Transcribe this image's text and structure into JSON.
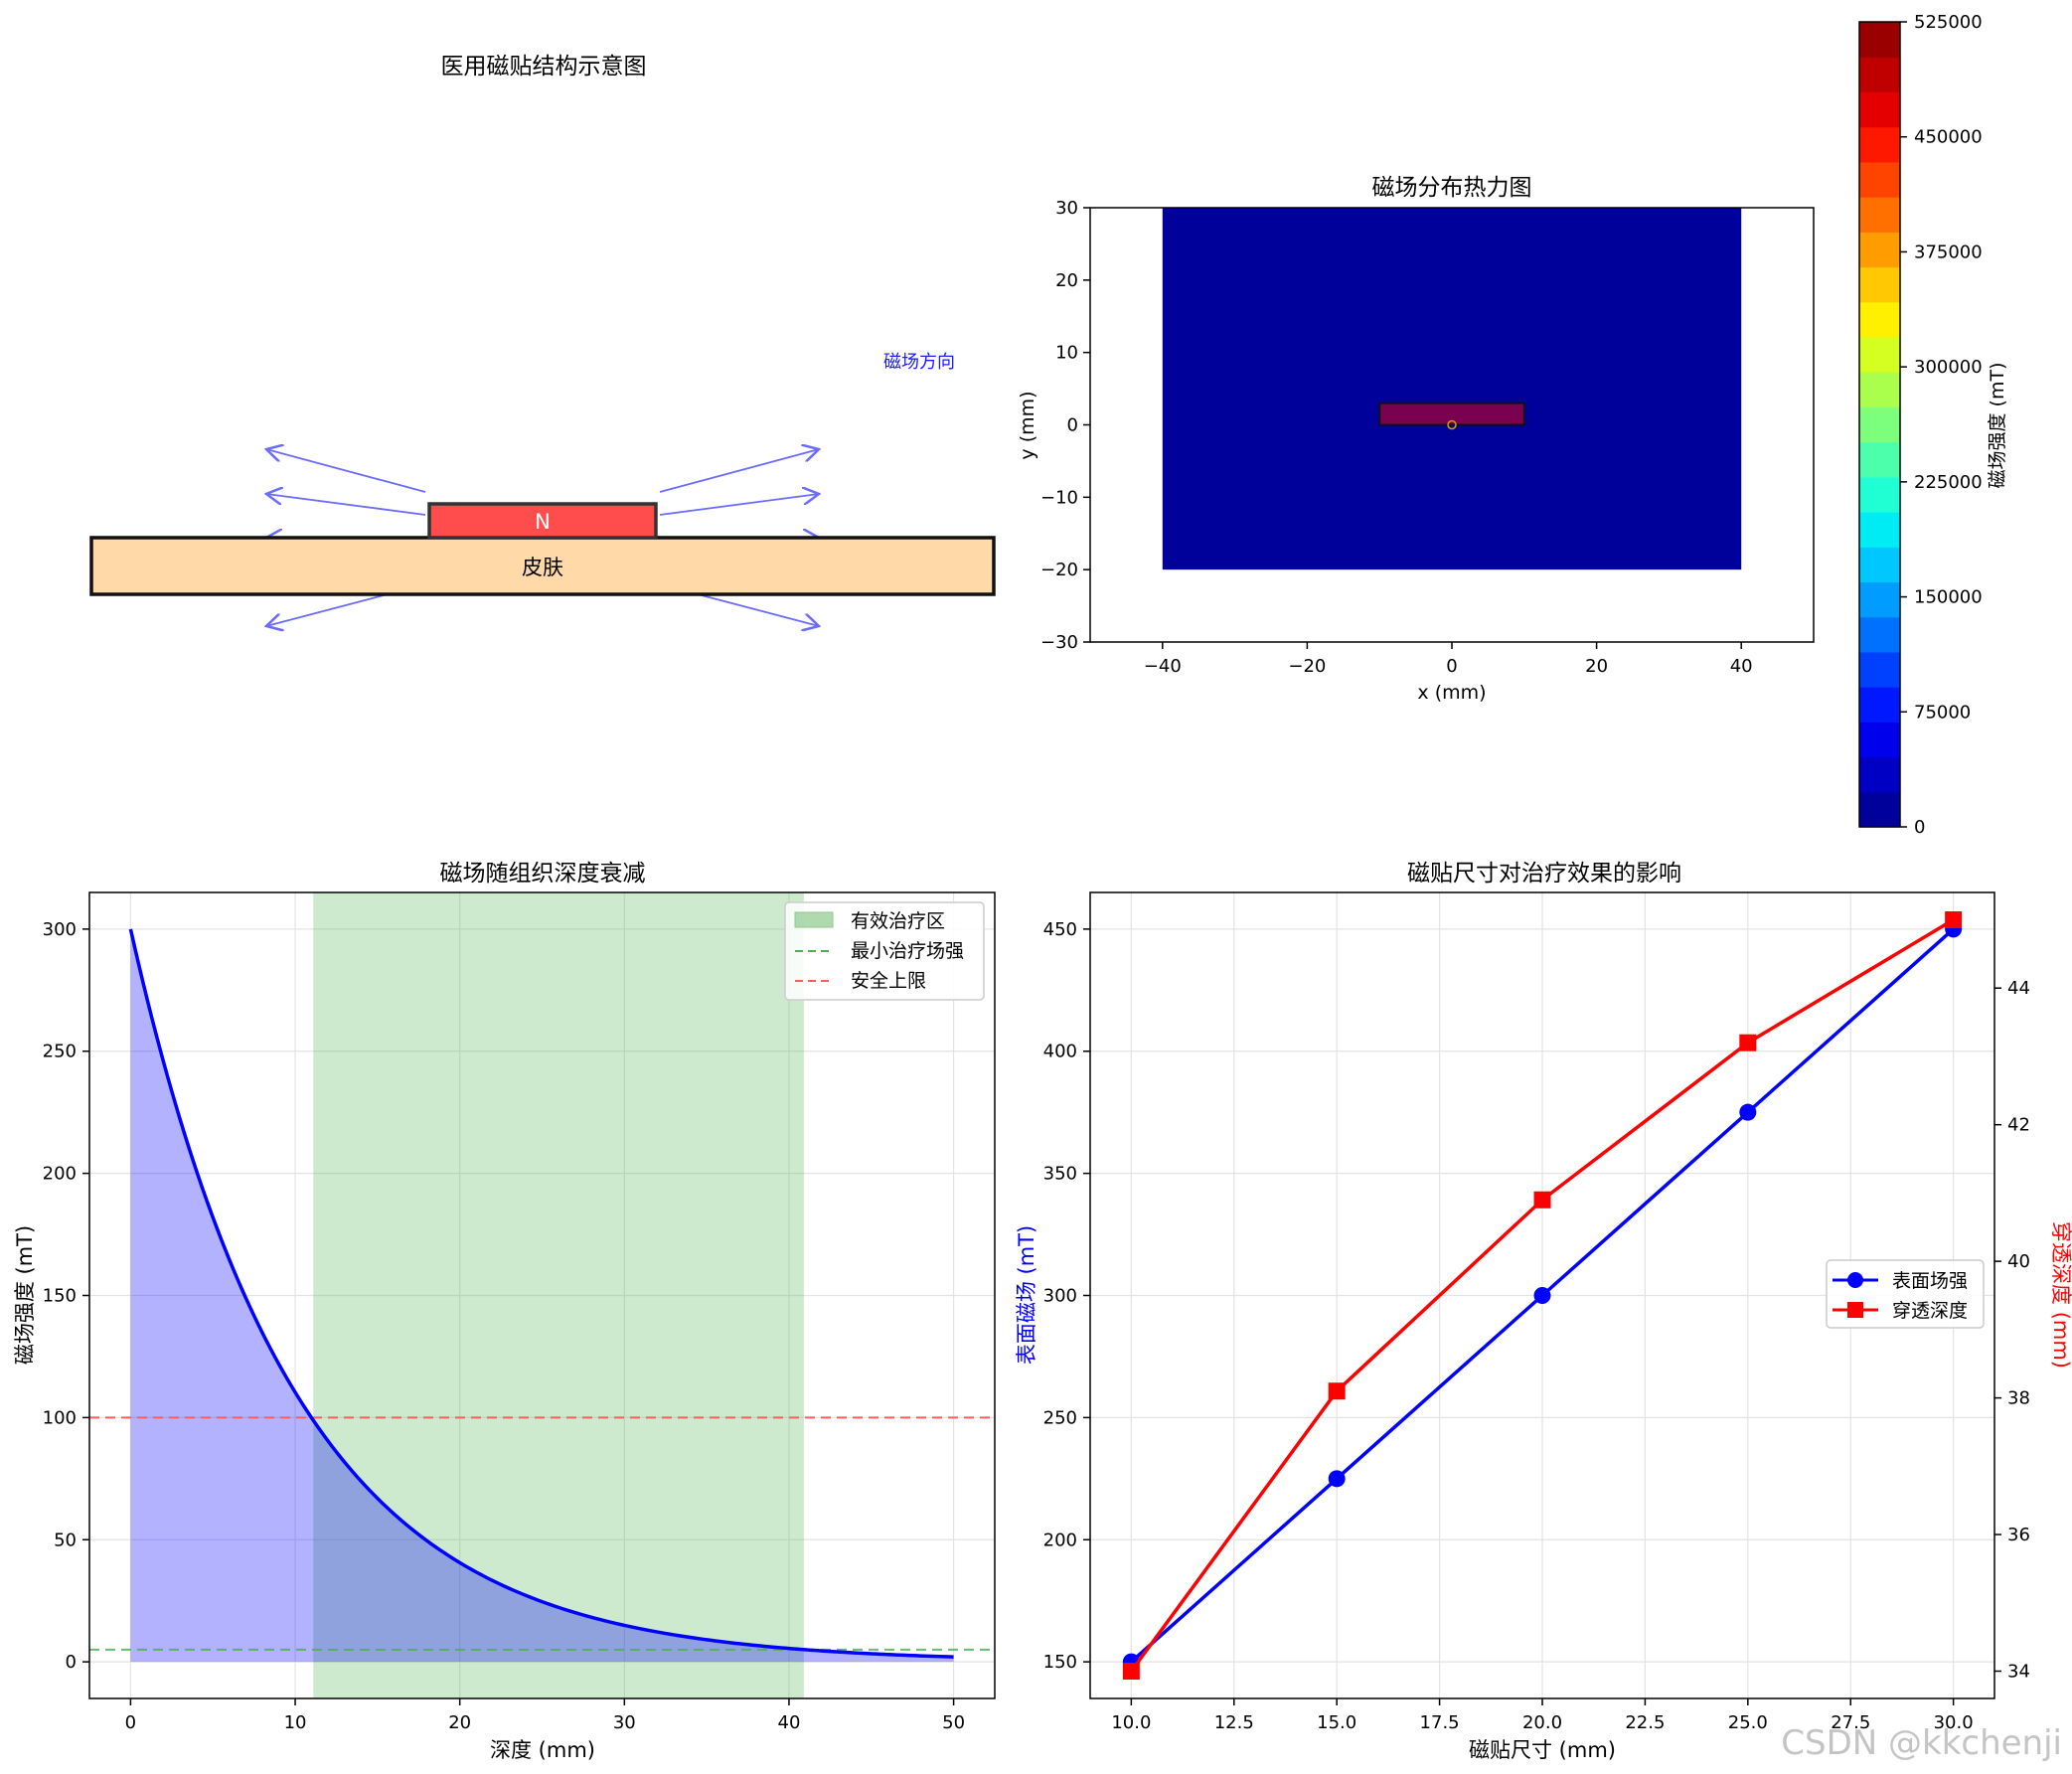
{
  "watermark": "CSDN @kkchenji",
  "chart_data": [
    {
      "id": "structure",
      "type": "diagram",
      "title": "医用磁贴结构示意图",
      "magnet_label": "N",
      "skin_label": "皮肤",
      "arrow_label": "磁场方向",
      "colors": {
        "skin": "#ffdaa8",
        "magnet": "#ff4d4d",
        "arrow": "#6b6bff",
        "arrow_label": "#1a1aff"
      }
    },
    {
      "id": "heatmap",
      "type": "heatmap",
      "title": "磁场分布热力图",
      "xlabel": "x (mm)",
      "ylabel": "y (mm)",
      "xlim": [
        -50,
        50
      ],
      "ylim": [
        -30,
        30
      ],
      "xticks": [
        "-40",
        "-20",
        "0",
        "20",
        "40"
      ],
      "yticks": [
        "30",
        "20",
        "10",
        "0",
        "−10",
        "−20",
        "−30"
      ],
      "field_region": {
        "x": [
          -40,
          40
        ],
        "y": [
          -20,
          30
        ]
      },
      "magnet_region": {
        "x": [
          -10,
          10
        ],
        "y": [
          0,
          3
        ]
      },
      "colorbar": {
        "label": "磁场强度 (mT)",
        "range": [
          0,
          525000
        ],
        "ticks": [
          "0",
          "75000",
          "150000",
          "225000",
          "300000",
          "375000",
          "450000",
          "525000"
        ],
        "levels": [
          "#00009a",
          "#0000c4",
          "#0000ec",
          "#0018ff",
          "#0040ff",
          "#0070ff",
          "#009cff",
          "#00c8ff",
          "#00ecf4",
          "#20ffd4",
          "#4cffaa",
          "#7cff7c",
          "#aaff4c",
          "#d4ff20",
          "#fff000",
          "#ffc800",
          "#ff9c00",
          "#ff7000",
          "#ff4400",
          "#ff1800",
          "#e40000",
          "#c00000",
          "#9a0000"
        ]
      },
      "colors": {
        "field": "#00009a",
        "magnet": "#7a0050"
      }
    },
    {
      "id": "decay",
      "type": "line",
      "title": "磁场随组织深度衰减",
      "xlabel": "深度 (mm)",
      "ylabel": "磁场强度 (mT)",
      "xlim": [
        -2.5,
        52.5
      ],
      "ylim": [
        -15,
        315
      ],
      "xticks": [
        "0",
        "10",
        "20",
        "30",
        "40",
        "50"
      ],
      "yticks": [
        "0",
        "50",
        "100",
        "150",
        "200",
        "250",
        "300"
      ],
      "curve": {
        "B0": 300,
        "decay_length_mm": 10,
        "x_range": [
          0,
          50
        ]
      },
      "effective_zone": [
        11.1,
        40.9
      ],
      "min_therapy_field": 5,
      "safety_limit": 100,
      "legend": [
        {
          "label": "有效治疗区",
          "color": "#8fc98f"
        },
        {
          "label": "最小治疗场强",
          "color": "#4caf50"
        },
        {
          "label": "安全上限",
          "color": "#ff5c5c"
        }
      ]
    },
    {
      "id": "size_effect",
      "type": "line",
      "title": "磁贴尺寸对治疗效果的影响",
      "xlabel": "磁贴尺寸 (mm)",
      "ylabel_left": "表面磁场 (mT)",
      "ylabel_right": "穿透深度 (mm)",
      "xlim": [
        9,
        31
      ],
      "ylim_left": [
        135,
        465
      ],
      "ylim_right": [
        33.6,
        45.4
      ],
      "xticks": [
        "10.0",
        "12.5",
        "15.0",
        "17.5",
        "20.0",
        "22.5",
        "25.0",
        "27.5",
        "30.0"
      ],
      "yticks_left": [
        "150",
        "200",
        "250",
        "300",
        "350",
        "400",
        "450"
      ],
      "yticks_right": [
        "34",
        "36",
        "38",
        "40",
        "42",
        "44"
      ],
      "categories": [
        10,
        15,
        20,
        25,
        30
      ],
      "series": [
        {
          "name": "表面场强",
          "axis": "left",
          "color": "#0000ff",
          "marker": "circle",
          "values": [
            150,
            225,
            300,
            375,
            450
          ]
        },
        {
          "name": "穿透深度",
          "axis": "right",
          "color": "#ff0000",
          "marker": "square",
          "values": [
            34.0,
            38.1,
            40.9,
            43.2,
            45.0
          ]
        }
      ]
    }
  ]
}
